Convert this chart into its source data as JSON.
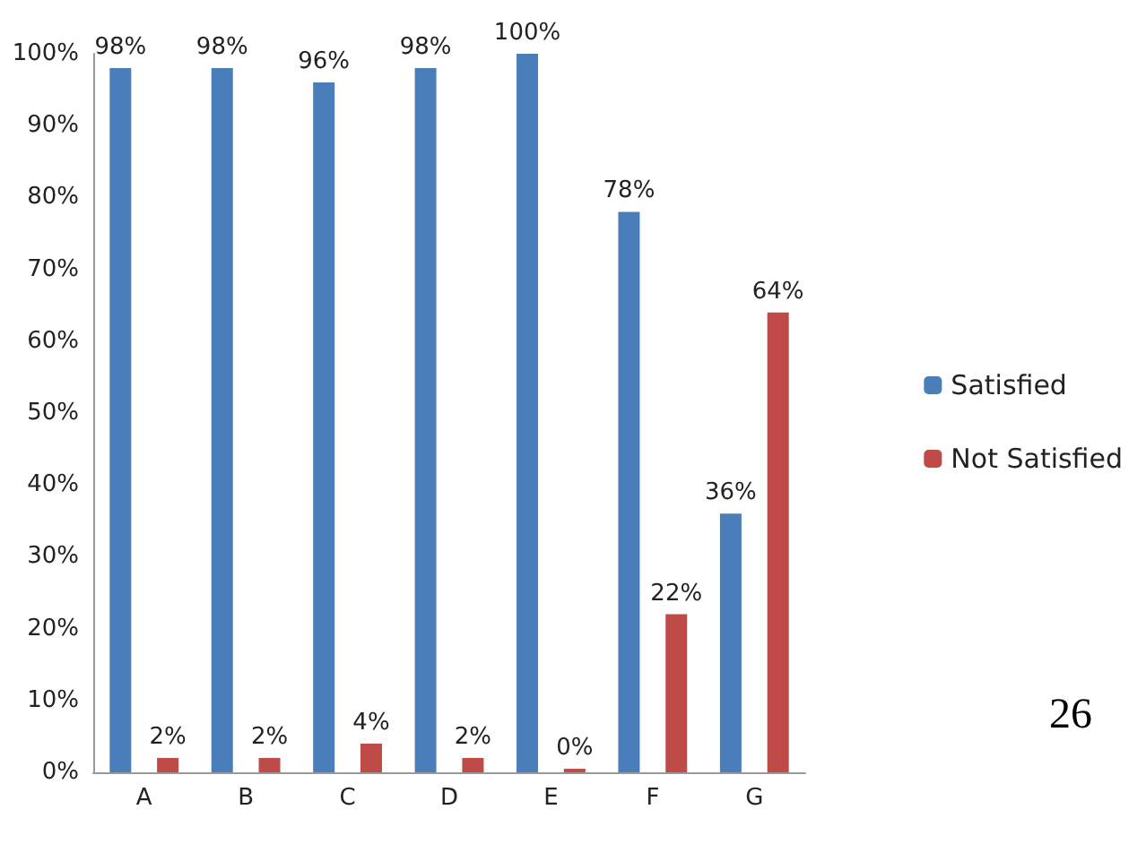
{
  "chart_data": {
    "type": "bar",
    "categories": [
      "A",
      "B",
      "C",
      "D",
      "E",
      "F",
      "G"
    ],
    "series": [
      {
        "name": "Satisfied",
        "color": "#4a7ebb",
        "values": [
          98,
          98,
          96,
          98,
          100,
          78,
          36
        ],
        "value_labels": [
          "98%",
          "98%",
          "96%",
          "98%",
          "100%",
          "78%",
          "36%"
        ]
      },
      {
        "name": "Not Satisfied",
        "color": "#be4b48",
        "values": [
          2,
          2,
          4,
          2,
          0,
          22,
          64
        ],
        "value_labels": [
          "2%",
          "2%",
          "4%",
          "2%",
          "0%",
          "22%",
          "64%"
        ]
      }
    ],
    "ylim": [
      0,
      100
    ],
    "yticks": [
      {
        "value": 0,
        "label": "0%"
      },
      {
        "value": 10,
        "label": "10%"
      },
      {
        "value": 20,
        "label": "20%"
      },
      {
        "value": 30,
        "label": "30%"
      },
      {
        "value": 40,
        "label": "40%"
      },
      {
        "value": 50,
        "label": "50%"
      },
      {
        "value": 60,
        "label": "60%"
      },
      {
        "value": 70,
        "label": "70%"
      },
      {
        "value": 80,
        "label": "80%"
      },
      {
        "value": 90,
        "label": "90%"
      },
      {
        "value": 100,
        "label": "100%"
      }
    ],
    "grid": false,
    "legend": "right",
    "annotations": [
      "26"
    ]
  }
}
